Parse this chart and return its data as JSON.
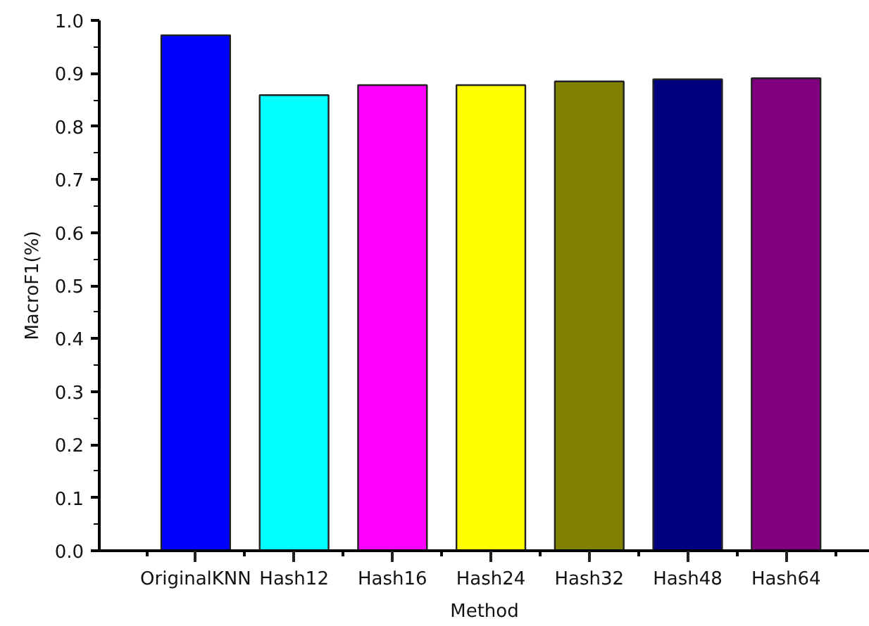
{
  "chart_data": {
    "type": "bar",
    "xlabel": "Method",
    "ylabel": "MacroF1(%)",
    "categories": [
      "OriginalKNN",
      "Hash12",
      "Hash16",
      "Hash24",
      "Hash32",
      "Hash48",
      "Hash64"
    ],
    "values": [
      0.972,
      0.859,
      0.878,
      0.878,
      0.885,
      0.889,
      0.891
    ],
    "colors": [
      "#0000ff",
      "#00ffff",
      "#ff00ff",
      "#ffff00",
      "#808000",
      "#000080",
      "#800080"
    ],
    "ylim": [
      0,
      1.0
    ],
    "yticks": [
      {
        "value": 0,
        "label": "0.0"
      },
      0.1,
      0.2,
      0.3,
      0.4,
      0.5,
      0.6,
      0.7,
      0.8,
      0.9,
      {
        "value": 1.0,
        "label": "1.0"
      }
    ],
    "grid": false
  }
}
